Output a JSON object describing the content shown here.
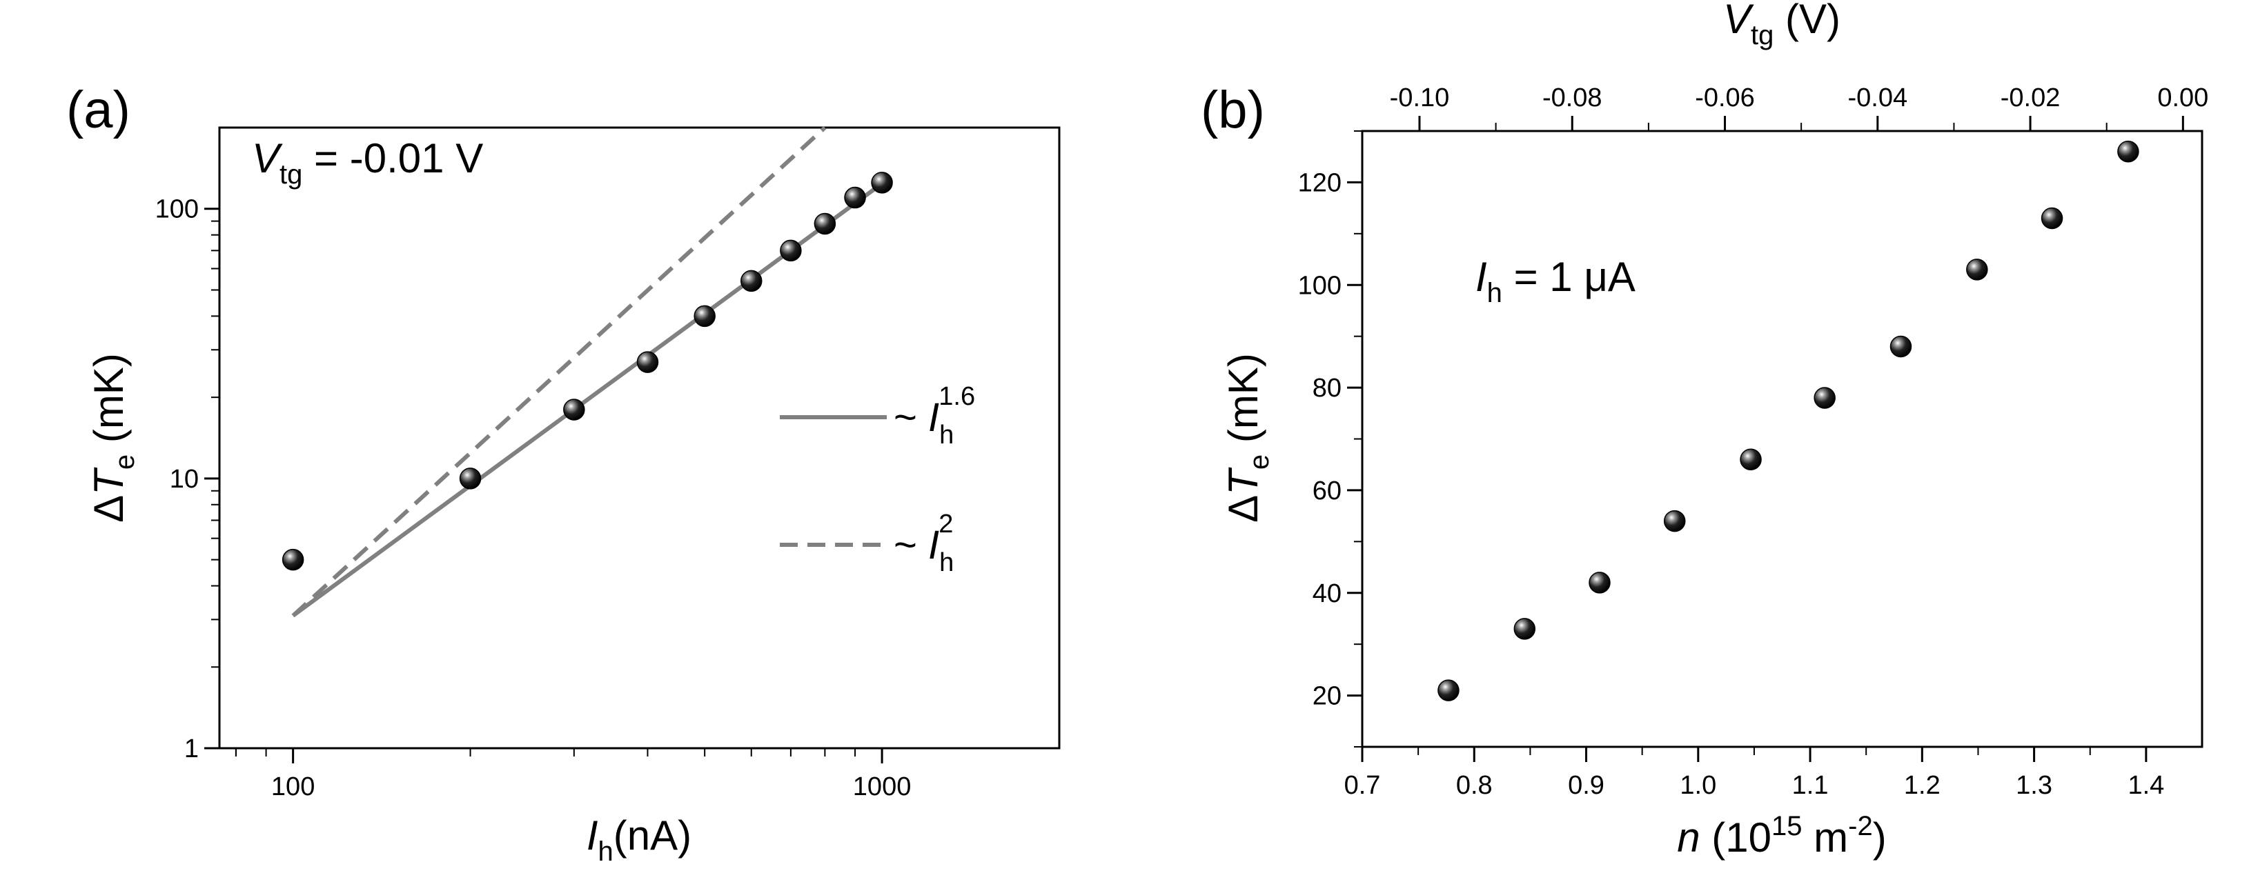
{
  "chart_data": [
    {
      "panel_label": "(a)",
      "type": "scatter",
      "x_scale": "log",
      "y_scale": "log",
      "xlabel": {
        "main": "I",
        "sub": "h",
        "unit": "(nA)"
      },
      "ylabel": {
        "prefix": "Δ",
        "main": "T",
        "sub": "e",
        "unit": " (mK)"
      },
      "xlim": [
        75,
        2000
      ],
      "ylim": [
        1,
        200
      ],
      "x_ticks": [
        {
          "value": 100,
          "label": "100"
        },
        {
          "value": 1000,
          "label": "1000"
        }
      ],
      "y_ticks": [
        {
          "value": 1,
          "label": "1"
        },
        {
          "value": 10,
          "label": "10"
        },
        {
          "value": 100,
          "label": "100"
        }
      ],
      "annotation": {
        "main": "V",
        "sub": "tg",
        "rest": " = -0.01 V"
      },
      "series": [
        {
          "kind": "points",
          "color": "#000000",
          "x": [
            100,
            200,
            300,
            400,
            500,
            600,
            700,
            800,
            900,
            1000
          ],
          "y": [
            5,
            10,
            18,
            27,
            40,
            54,
            70,
            88,
            110,
            125
          ]
        },
        {
          "kind": "line",
          "style": "solid",
          "color": "#808080",
          "x": [
            100,
            1000
          ],
          "y": [
            3.1,
            124
          ]
        },
        {
          "kind": "line",
          "style": "dashed",
          "color": "#808080",
          "x": [
            100,
            800
          ],
          "y": [
            3.1,
            200
          ]
        }
      ],
      "legend": {
        "position": "right",
        "entries": [
          {
            "style": "solid",
            "prefix": "~ ",
            "main": "I",
            "sub": "h",
            "sup": "1.6"
          },
          {
            "style": "dashed",
            "prefix": "~ ",
            "main": "I",
            "sub": "h",
            "sup": "2"
          }
        ]
      }
    },
    {
      "panel_label": "(b)",
      "type": "scatter",
      "x_scale": "linear",
      "y_scale": "linear",
      "xlabel": {
        "main": "n",
        "unit_pre": " (10",
        "unit_sup": "15",
        "unit_mid": " m",
        "unit_sup2": "-2",
        "unit_post": ")"
      },
      "ylabel": {
        "prefix": "Δ",
        "main": "T",
        "sub": "e",
        "unit": " (mK)"
      },
      "top_xlabel": {
        "main": "V",
        "sub": "tg",
        "unit": " (V)"
      },
      "xlim": [
        0.7,
        1.45
      ],
      "ylim": [
        10,
        130
      ],
      "top_xlim": [
        -0.1075,
        0.0025
      ],
      "x_ticks": [
        {
          "value": 0.7,
          "label": "0.7"
        },
        {
          "value": 0.8,
          "label": "0.8"
        },
        {
          "value": 0.9,
          "label": "0.9"
        },
        {
          "value": 1.0,
          "label": "1.0"
        },
        {
          "value": 1.1,
          "label": "1.1"
        },
        {
          "value": 1.2,
          "label": "1.2"
        },
        {
          "value": 1.3,
          "label": "1.3"
        },
        {
          "value": 1.4,
          "label": "1.4"
        }
      ],
      "y_ticks": [
        {
          "value": 20,
          "label": "20"
        },
        {
          "value": 40,
          "label": "40"
        },
        {
          "value": 60,
          "label": "60"
        },
        {
          "value": 80,
          "label": "80"
        },
        {
          "value": 100,
          "label": "100"
        },
        {
          "value": 120,
          "label": "120"
        }
      ],
      "top_ticks": [
        {
          "value": -0.1,
          "label": "-0.10"
        },
        {
          "value": -0.08,
          "label": "-0.08"
        },
        {
          "value": -0.06,
          "label": "-0.06"
        },
        {
          "value": -0.04,
          "label": "-0.04"
        },
        {
          "value": -0.02,
          "label": "-0.02"
        },
        {
          "value": 0.0,
          "label": "0.00"
        }
      ],
      "annotation": {
        "main": "I",
        "sub": "h",
        "rest": " = 1 μA"
      },
      "series": [
        {
          "kind": "points",
          "color": "#000000",
          "x": [
            0.777,
            0.845,
            0.912,
            0.979,
            1.047,
            1.113,
            1.181,
            1.249,
            1.316,
            1.384
          ],
          "y": [
            21,
            33,
            42,
            54,
            66,
            78,
            88,
            103,
            113,
            126
          ]
        }
      ]
    }
  ]
}
